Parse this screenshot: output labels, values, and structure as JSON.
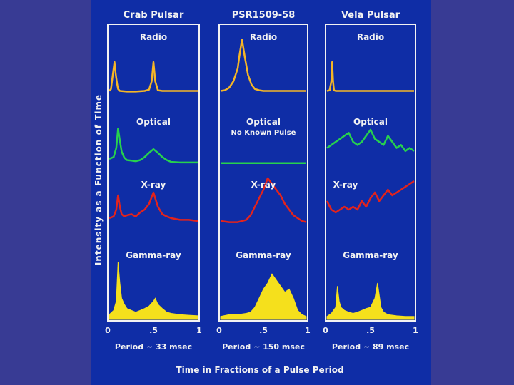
{
  "chart_data": {
    "type": "line",
    "ylabel": "Intensity as a Function of Time",
    "xlabel": "Time in Fractions of a Pulse Period",
    "colors": {
      "page_background": "#383b94",
      "slide_background": "#0f2da6",
      "panel_border": "#f2f2f2",
      "radio": "#f5b626",
      "optical": "#27d14e",
      "xray": "#e3231c",
      "gamma": "#f5e01c",
      "text": "#f2f2f2"
    },
    "panels": [
      {
        "title": "Crab Pulsar",
        "period_label": "Period ~ 33 msec",
        "x_ticks": [
          "0",
          ".5",
          "1"
        ],
        "xlim": [
          0,
          1
        ],
        "bands": [
          {
            "name": "Radio",
            "color": "#f5b626",
            "x": [
              0,
              0.02,
              0.04,
              0.06,
              0.07,
              0.08,
              0.09,
              0.1,
              0.12,
              0.2,
              0.3,
              0.4,
              0.45,
              0.48,
              0.5,
              0.52,
              0.55,
              0.6,
              0.7,
              0.8,
              0.9,
              1.0
            ],
            "y": [
              0.05,
              0.08,
              0.3,
              0.5,
              0.35,
              0.25,
              0.15,
              0.08,
              0.05,
              0.04,
              0.04,
              0.05,
              0.07,
              0.2,
              0.5,
              0.2,
              0.06,
              0.05,
              0.05,
              0.05,
              0.05,
              0.05
            ]
          },
          {
            "name": "Optical",
            "color": "#27d14e",
            "x": [
              0,
              0.05,
              0.08,
              0.1,
              0.12,
              0.14,
              0.17,
              0.2,
              0.25,
              0.3,
              0.35,
              0.4,
              0.45,
              0.5,
              0.55,
              0.6,
              0.65,
              0.7,
              0.8,
              0.9,
              1.0
            ],
            "y": [
              0.12,
              0.15,
              0.3,
              0.62,
              0.42,
              0.24,
              0.14,
              0.1,
              0.09,
              0.08,
              0.1,
              0.15,
              0.22,
              0.28,
              0.22,
              0.15,
              0.1,
              0.07,
              0.06,
              0.06,
              0.06
            ]
          },
          {
            "name": "X-ray",
            "color": "#e3231c",
            "x": [
              0,
              0.05,
              0.08,
              0.1,
              0.12,
              0.14,
              0.17,
              0.2,
              0.25,
              0.3,
              0.35,
              0.4,
              0.45,
              0.5,
              0.55,
              0.6,
              0.65,
              0.7,
              0.8,
              0.9,
              1.0
            ],
            "y": [
              0.15,
              0.18,
              0.3,
              0.55,
              0.35,
              0.22,
              0.18,
              0.2,
              0.22,
              0.18,
              0.25,
              0.3,
              0.4,
              0.6,
              0.35,
              0.22,
              0.18,
              0.15,
              0.12,
              0.12,
              0.1
            ]
          },
          {
            "name": "Gamma-ray",
            "color": "#f5e01c",
            "x": [
              0,
              0.05,
              0.08,
              0.1,
              0.12,
              0.14,
              0.17,
              0.2,
              0.25,
              0.3,
              0.35,
              0.4,
              0.45,
              0.5,
              0.52,
              0.55,
              0.6,
              0.65,
              0.7,
              0.8,
              0.9,
              1.0
            ],
            "y": [
              0.08,
              0.15,
              0.3,
              0.95,
              0.6,
              0.35,
              0.25,
              0.18,
              0.15,
              0.12,
              0.15,
              0.18,
              0.22,
              0.3,
              0.35,
              0.25,
              0.18,
              0.12,
              0.1,
              0.08,
              0.07,
              0.06
            ]
          }
        ]
      },
      {
        "title": "PSR1509-58",
        "period_label": "Period ~ 150 msec",
        "x_ticks": [
          "0",
          ".5",
          "1"
        ],
        "xlim": [
          0,
          1
        ],
        "bands": [
          {
            "name": "Radio",
            "color": "#f5b626",
            "x": [
              0,
              0.05,
              0.1,
              0.15,
              0.2,
              0.22,
              0.25,
              0.28,
              0.32,
              0.36,
              0.4,
              0.45,
              0.5,
              0.6,
              0.7,
              0.8,
              0.9,
              1.0
            ],
            "y": [
              0.05,
              0.06,
              0.1,
              0.2,
              0.4,
              0.6,
              0.85,
              0.6,
              0.3,
              0.15,
              0.08,
              0.06,
              0.05,
              0.05,
              0.05,
              0.05,
              0.05,
              0.05
            ]
          },
          {
            "name": "Optical",
            "color": "#27d14e",
            "note": "No Known Pulse",
            "x": [
              0,
              1
            ],
            "y": [
              0.05,
              0.05
            ]
          },
          {
            "name": "X-ray",
            "color": "#e3231c",
            "x": [
              0,
              0.1,
              0.2,
              0.3,
              0.35,
              0.4,
              0.45,
              0.5,
              0.55,
              0.6,
              0.65,
              0.7,
              0.75,
              0.8,
              0.85,
              0.9,
              0.95,
              1.0
            ],
            "y": [
              0.1,
              0.08,
              0.08,
              0.12,
              0.2,
              0.35,
              0.5,
              0.65,
              0.85,
              0.75,
              0.65,
              0.55,
              0.4,
              0.3,
              0.2,
              0.15,
              0.1,
              0.08
            ]
          },
          {
            "name": "Gamma-ray",
            "color": "#f5e01c",
            "x": [
              0,
              0.1,
              0.2,
              0.3,
              0.35,
              0.4,
              0.45,
              0.5,
              0.55,
              0.6,
              0.65,
              0.7,
              0.75,
              0.8,
              0.85,
              0.9,
              0.95,
              1.0
            ],
            "y": [
              0.05,
              0.08,
              0.08,
              0.1,
              0.12,
              0.2,
              0.35,
              0.5,
              0.6,
              0.75,
              0.65,
              0.55,
              0.45,
              0.5,
              0.35,
              0.15,
              0.08,
              0.05
            ]
          }
        ]
      },
      {
        "title": "Vela Pulsar",
        "period_label": "Period ~ 89 msec",
        "x_ticks": [
          "0",
          ".5",
          "1"
        ],
        "xlim": [
          0,
          1
        ],
        "bands": [
          {
            "name": "Radio",
            "color": "#f5b626",
            "x": [
              0,
              0.03,
              0.05,
              0.06,
              0.07,
              0.08,
              0.1,
              0.2,
              0.4,
              0.6,
              0.8,
              1.0
            ],
            "y": [
              0.05,
              0.06,
              0.2,
              0.5,
              0.2,
              0.06,
              0.05,
              0.05,
              0.05,
              0.05,
              0.05,
              0.05
            ]
          },
          {
            "name": "Optical",
            "color": "#27d14e",
            "x": [
              0,
              0.05,
              0.1,
              0.15,
              0.2,
              0.25,
              0.3,
              0.35,
              0.4,
              0.45,
              0.5,
              0.55,
              0.6,
              0.65,
              0.7,
              0.75,
              0.8,
              0.85,
              0.9,
              0.95,
              1.0
            ],
            "y": [
              0.3,
              0.35,
              0.4,
              0.45,
              0.5,
              0.55,
              0.4,
              0.35,
              0.4,
              0.5,
              0.6,
              0.45,
              0.4,
              0.35,
              0.5,
              0.4,
              0.3,
              0.35,
              0.25,
              0.3,
              0.25
            ]
          },
          {
            "name": "X-ray",
            "color": "#e3231c",
            "x": [
              0,
              0.05,
              0.1,
              0.15,
              0.2,
              0.25,
              0.3,
              0.35,
              0.4,
              0.45,
              0.5,
              0.55,
              0.6,
              0.65,
              0.7,
              0.75,
              0.8,
              0.85,
              0.9,
              0.95,
              1.0
            ],
            "y": [
              0.45,
              0.3,
              0.25,
              0.3,
              0.35,
              0.3,
              0.35,
              0.3,
              0.45,
              0.35,
              0.5,
              0.6,
              0.45,
              0.55,
              0.65,
              0.55,
              0.6,
              0.65,
              0.7,
              0.75,
              0.8
            ]
          },
          {
            "name": "Gamma-ray",
            "color": "#f5e01c",
            "x": [
              0,
              0.05,
              0.1,
              0.12,
              0.14,
              0.16,
              0.2,
              0.25,
              0.3,
              0.35,
              0.4,
              0.45,
              0.5,
              0.55,
              0.58,
              0.6,
              0.62,
              0.65,
              0.7,
              0.8,
              0.9,
              1.0
            ],
            "y": [
              0.05,
              0.1,
              0.2,
              0.55,
              0.3,
              0.2,
              0.15,
              0.12,
              0.1,
              0.12,
              0.15,
              0.18,
              0.2,
              0.35,
              0.6,
              0.4,
              0.2,
              0.12,
              0.08,
              0.06,
              0.05,
              0.05
            ]
          }
        ]
      }
    ]
  }
}
